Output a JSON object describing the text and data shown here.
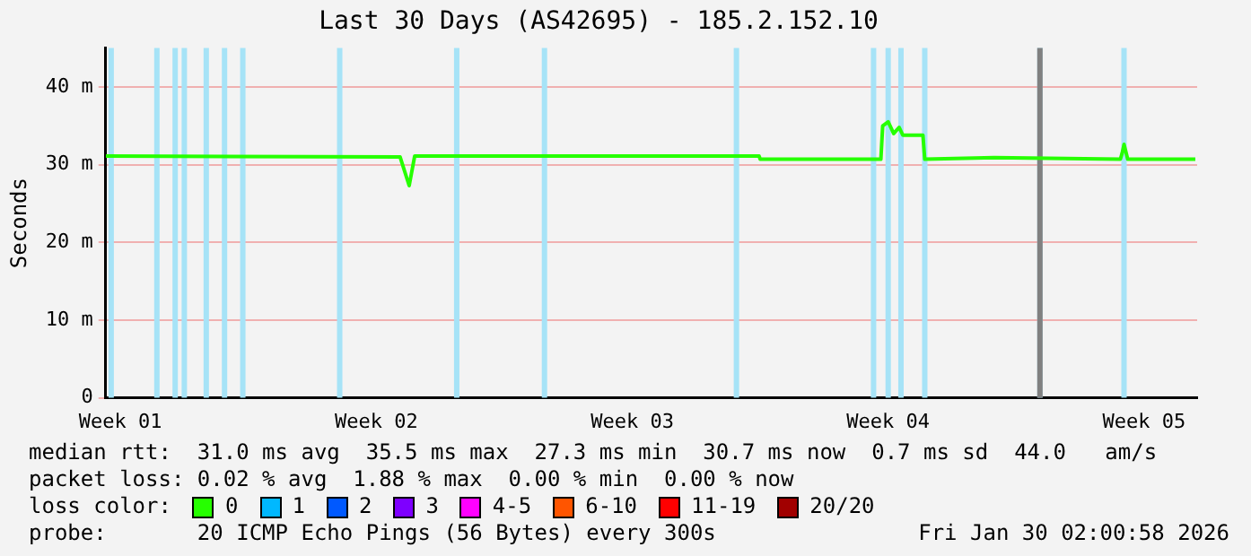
{
  "chart_data": {
    "type": "line",
    "title": "Last 30 Days (AS42695) - 185.2.152.10",
    "ylabel": "Seconds",
    "xlim": [
      "2025-12-31T02:00",
      "2026-01-29T22:24"
    ],
    "xticks": [
      {
        "value": "2025-12-31T11:36",
        "label": "Week 01"
      },
      {
        "value": "2026-01-07T11:36",
        "label": "Week 02"
      },
      {
        "value": "2026-01-14T11:36",
        "label": "Week 03"
      },
      {
        "value": "2026-01-21T11:36",
        "label": "Week 04"
      },
      {
        "value": "2026-01-28T11:36",
        "label": "Week 05"
      }
    ],
    "ylim": [
      0,
      45
    ],
    "yticks": [
      0,
      {
        "value": 10,
        "label": "10 m"
      },
      {
        "value": 20,
        "label": "20 m"
      },
      {
        "value": 30,
        "label": "30 m"
      },
      {
        "value": 40,
        "label": "40 m"
      }
    ],
    "grid": "y",
    "marker": "none",
    "line_style": "solid",
    "legend": "bottom left",
    "legend_title": "loss color:",
    "x": [
      "2025-12-31T02:00",
      "2026-01-08T03:12",
      "2026-01-08T09:12",
      "2026-01-08T12:48",
      "2026-01-17T22:53",
      "2026-01-17T23:36",
      "2026-01-21T06:48",
      "2026-01-21T08:00",
      "2026-01-21T11:36",
      "2026-01-21T15:12",
      "2026-01-21T18:48",
      "2026-01-21T21:12",
      "2026-01-22T10:24",
      "2026-01-22T11:36",
      "2026-01-24T09:12",
      "2026-01-27T20:00",
      "2026-01-27T21:12",
      "2026-01-27T22:24",
      "2026-01-28T00:48",
      "2026-01-29T21:12"
    ],
    "series": [
      {
        "name": "0",
        "color": "#26ff00",
        "values": [
          31.1,
          31.0,
          27.3,
          31.1,
          31.1,
          30.7,
          30.7,
          35.0,
          35.5,
          34.0,
          34.8,
          33.8,
          33.8,
          30.7,
          30.9,
          30.7,
          31.5,
          32.6,
          30.7,
          30.7
        ]
      },
      {
        "name": "1",
        "color": "#00b8ff",
        "values": [
          null,
          null,
          null,
          null,
          null,
          null,
          null,
          null,
          null,
          null,
          null,
          null,
          null,
          null,
          null,
          null,
          null,
          null,
          null,
          null
        ]
      },
      {
        "name": "2",
        "color": "#0059ff",
        "values": [
          null,
          null,
          null,
          null,
          null,
          null,
          null,
          null,
          null,
          null,
          null,
          null,
          null,
          null,
          null,
          null,
          null,
          null,
          null,
          null
        ]
      },
      {
        "name": "3",
        "color": "#7e00ff",
        "values": [
          null,
          null,
          null,
          null,
          null,
          null,
          null,
          null,
          null,
          null,
          null,
          null,
          null,
          null,
          null,
          null,
          null,
          null,
          null,
          null
        ]
      },
      {
        "name": "4-5",
        "color": "#ff00ff",
        "values": [
          null,
          null,
          null,
          null,
          null,
          null,
          null,
          null,
          null,
          null,
          null,
          null,
          null,
          null,
          null,
          null,
          null,
          null,
          null,
          null
        ]
      },
      {
        "name": "6-10",
        "color": "#ff5500",
        "values": [
          null,
          null,
          null,
          null,
          null,
          null,
          null,
          null,
          null,
          null,
          null,
          null,
          null,
          null,
          null,
          null,
          null,
          null,
          null,
          null
        ]
      },
      {
        "name": "11-19",
        "color": "#ff0000",
        "values": [
          null,
          null,
          null,
          null,
          null,
          null,
          null,
          null,
          null,
          null,
          null,
          null,
          null,
          null,
          null,
          null,
          null,
          null,
          null,
          null
        ]
      },
      {
        "name": "20/20",
        "color": "#a10000",
        "values": [
          null,
          null,
          null,
          null,
          null,
          null,
          null,
          null,
          null,
          null,
          null,
          null,
          null,
          null,
          null,
          null,
          null,
          null,
          null,
          null
        ]
      }
    ],
    "ref_lines": [
      {
        "axis": "x",
        "value": "2025-12-31T05:36",
        "color": "#a6e3f7"
      },
      {
        "axis": "x",
        "value": "2026-01-01T11:36",
        "color": "#a6e3f7"
      },
      {
        "axis": "x",
        "value": "2026-01-01T23:36",
        "color": "#a6e3f7"
      },
      {
        "axis": "x",
        "value": "2026-01-02T05:36",
        "color": "#a6e3f7"
      },
      {
        "axis": "x",
        "value": "2026-01-02T20:00",
        "color": "#a6e3f7"
      },
      {
        "axis": "x",
        "value": "2026-01-03T08:00",
        "color": "#a6e3f7"
      },
      {
        "axis": "x",
        "value": "2026-01-03T20:00",
        "color": "#a6e3f7"
      },
      {
        "axis": "x",
        "value": "2026-01-06T11:36",
        "color": "#a6e3f7"
      },
      {
        "axis": "x",
        "value": "2026-01-09T16:24",
        "color": "#a6e3f7"
      },
      {
        "axis": "x",
        "value": "2026-01-12T02:00",
        "color": "#a6e3f7"
      },
      {
        "axis": "x",
        "value": "2026-01-17T08:00",
        "color": "#a6e3f7"
      },
      {
        "axis": "x",
        "value": "2026-01-21T02:00",
        "color": "#a6e3f7"
      },
      {
        "axis": "x",
        "value": "2026-01-21T11:36",
        "color": "#a6e3f7"
      },
      {
        "axis": "x",
        "value": "2026-01-21T20:00",
        "color": "#a6e3f7"
      },
      {
        "axis": "x",
        "value": "2026-01-22T11:36",
        "color": "#a6e3f7"
      },
      {
        "axis": "x",
        "value": "2026-01-25T15:12",
        "color": "#a6e3f7"
      },
      {
        "axis": "x",
        "value": "2026-01-25T15:12",
        "color": "#808080"
      },
      {
        "axis": "x",
        "value": "2026-01-27T22:24",
        "color": "#a6e3f7"
      }
    ],
    "annotations": [
      "median rtt:  31.0 ms avg  35.5 ms max  27.3 ms min  30.7 ms now  0.7 ms sd  44.0   am/s",
      "packet loss: 0.02 % avg  1.88 % max  0.00 % min  0.00 % now",
      "probe:       20 ICMP Echo Pings (56 Bytes) every 300s",
      "Fri Jan 30 02:00:58 2026"
    ]
  }
}
